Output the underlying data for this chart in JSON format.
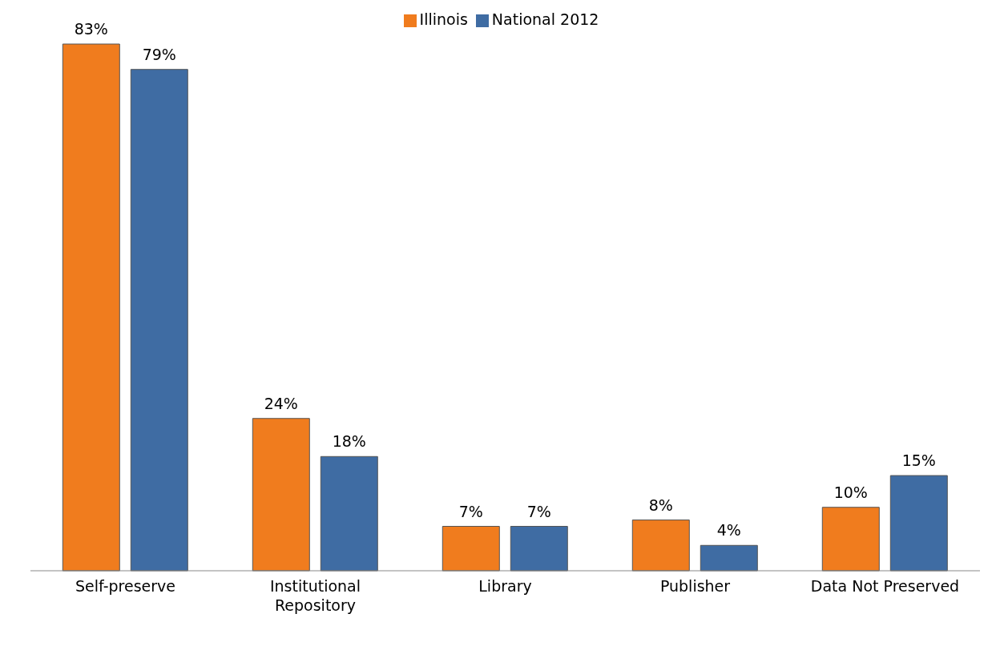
{
  "chart_data": {
    "type": "bar",
    "categories": [
      "Self-preserve",
      "Institutional Repository",
      "Library",
      "Publisher",
      "Data Not Preserved"
    ],
    "series": [
      {
        "name": "Illinois",
        "color": "#f07c1e",
        "values": [
          83,
          24,
          7,
          8,
          10
        ],
        "value_labels": [
          "83%",
          "24%",
          "7%",
          "8%",
          "10%"
        ]
      },
      {
        "name": "National 2012",
        "color": "#3f6ca3",
        "values": [
          79,
          18,
          7,
          4,
          15
        ],
        "value_labels": [
          "79%",
          "18%",
          "7%",
          "4%",
          "15%"
        ]
      }
    ],
    "legend": "top",
    "grid": false
  }
}
